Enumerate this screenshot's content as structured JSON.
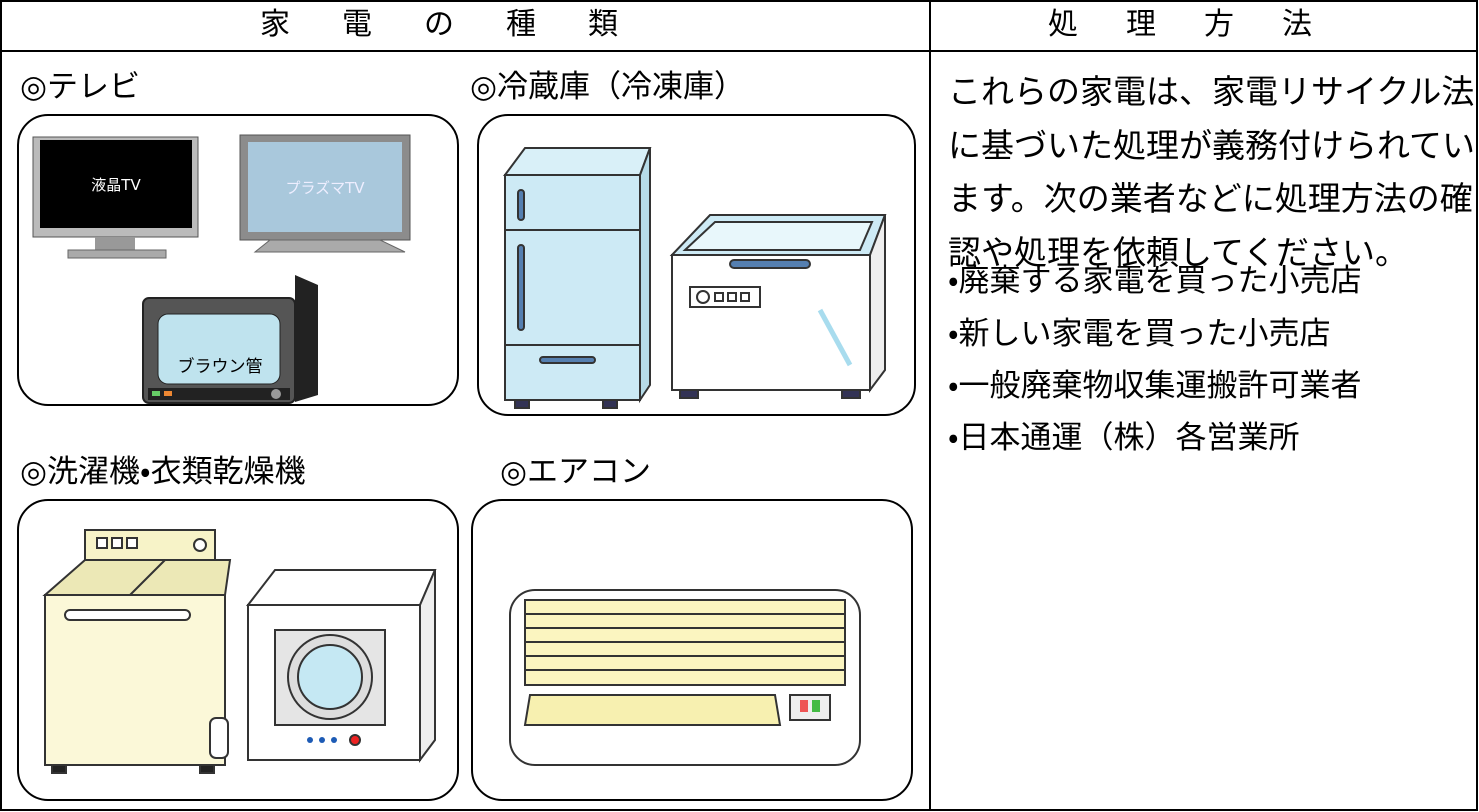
{
  "table": {
    "headers": [
      "家電の種類",
      "処理方法"
    ],
    "categories": [
      "◎テレビ",
      "◎冷蔵庫（冷凍庫）",
      "◎洗濯機・衣類乾燥機",
      "◎エアコン"
    ],
    "tv_labels": [
      "液晶TV",
      "プラズマTV",
      "ブラウン管"
    ],
    "method": {
      "text": "これらの家電は、家電リサイクル法に基づいた処理が義務付けられています。次の業者などに処理方法の確認や処理を依頼してください。",
      "items": [
        "・廃棄する家電を買った小売店",
        "・新しい家電を買った小売店",
        "・一般廃棄物収集運搬許可業者",
        "・日本通運（株）各営業所"
      ]
    }
  }
}
